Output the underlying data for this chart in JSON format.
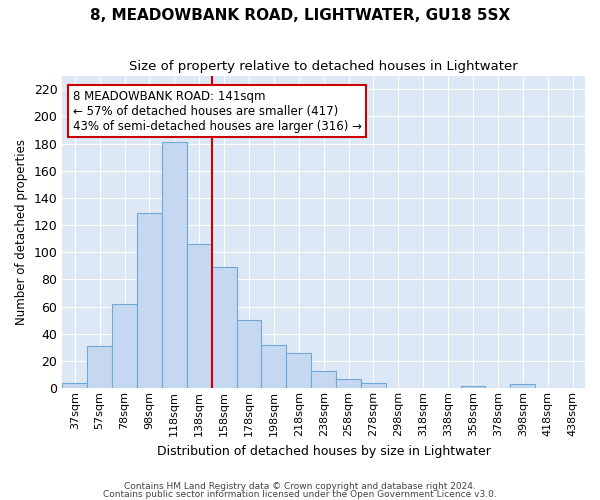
{
  "title": "8, MEADOWBANK ROAD, LIGHTWATER, GU18 5SX",
  "subtitle": "Size of property relative to detached houses in Lightwater",
  "xlabel": "Distribution of detached houses by size in Lightwater",
  "ylabel": "Number of detached properties",
  "bar_labels": [
    "37sqm",
    "57sqm",
    "78sqm",
    "98sqm",
    "118sqm",
    "138sqm",
    "158sqm",
    "178sqm",
    "198sqm",
    "218sqm",
    "238sqm",
    "258sqm",
    "278sqm",
    "298sqm",
    "318sqm",
    "338sqm",
    "358sqm",
    "378sqm",
    "398sqm",
    "418sqm",
    "438sqm"
  ],
  "bar_values": [
    4,
    31,
    62,
    129,
    181,
    106,
    89,
    50,
    32,
    26,
    13,
    7,
    4,
    0,
    0,
    0,
    2,
    0,
    3,
    0,
    0
  ],
  "bar_color": "#c5d8f0",
  "bar_edge_color": "#6fa8d6",
  "vline_color": "#cc0000",
  "annotation_text": "8 MEADOWBANK ROAD: 141sqm\n← 57% of detached houses are smaller (417)\n43% of semi-detached houses are larger (316) →",
  "annotation_box_color": "#ffffff",
  "annotation_box_edge": "#cc0000",
  "bg_color": "#dce8f5",
  "grid_color": "#ffffff",
  "ylim": [
    0,
    230
  ],
  "title_fontsize": 11,
  "subtitle_fontsize": 9.5,
  "footer1": "Contains HM Land Registry data © Crown copyright and database right 2024.",
  "footer2": "Contains public sector information licensed under the Open Government Licence v3.0."
}
